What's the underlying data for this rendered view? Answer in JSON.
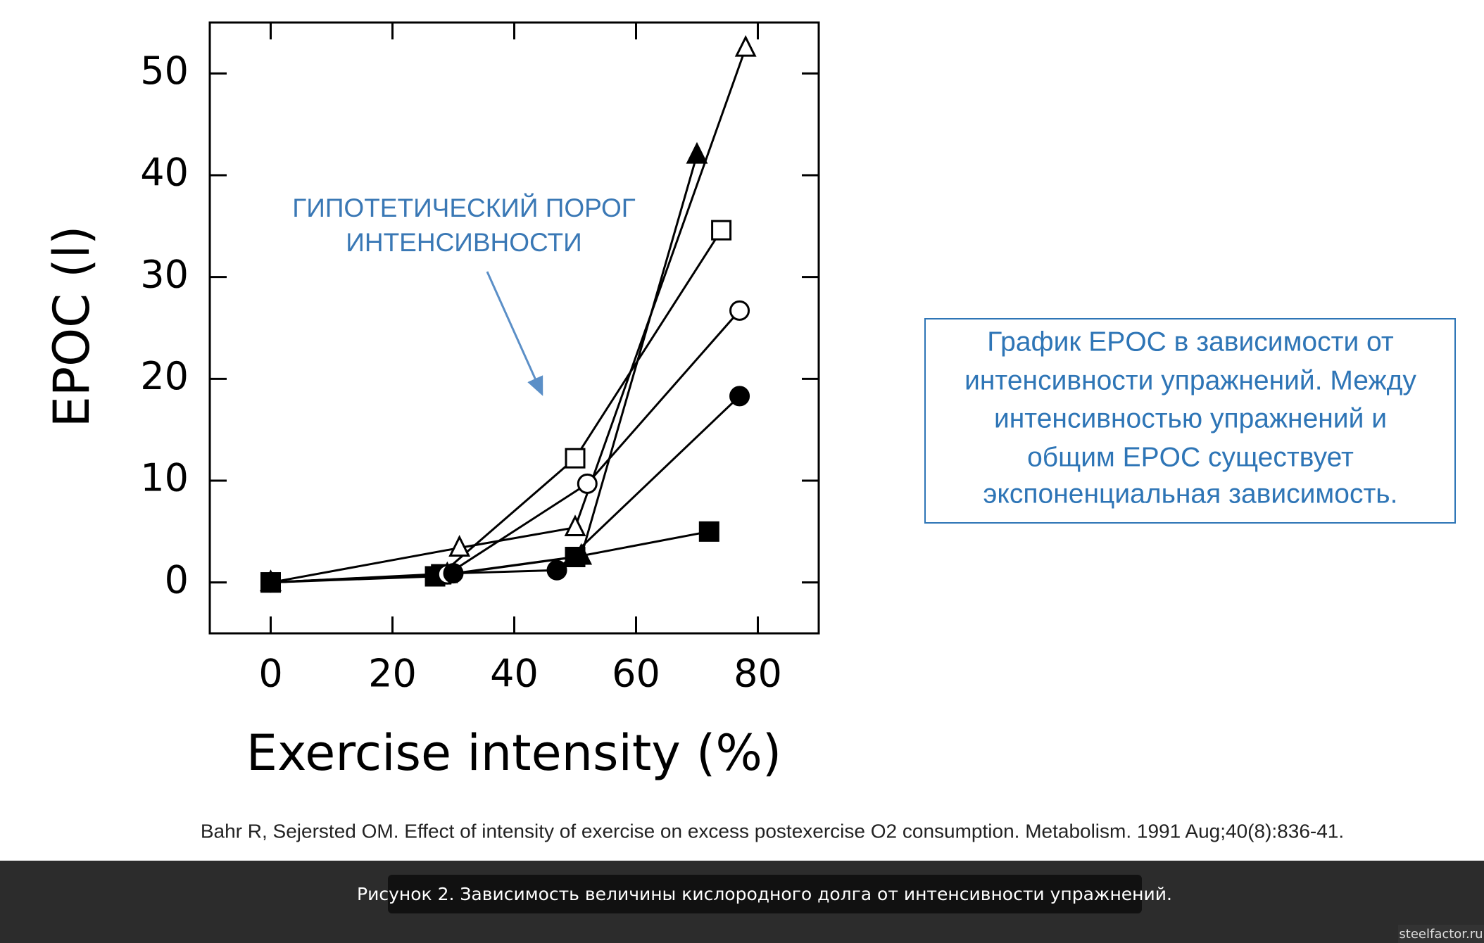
{
  "chart_data": {
    "type": "line",
    "xlabel": "Exercise intensity (%)",
    "ylabel": "EPOC (l)",
    "annotation": [
      "ГИПОТЕТИЧЕСКИЙ ПОРОГ",
      "ИНТЕНСИВНОСТИ"
    ],
    "xlim": [
      -10,
      90
    ],
    "xticks": [
      0,
      20,
      40,
      60,
      80
    ],
    "ylim": [
      -5,
      55
    ],
    "yticks": [
      0,
      10,
      20,
      30,
      40,
      50
    ],
    "color": "#000000",
    "series": [
      {
        "marker": "triangle",
        "filled": false,
        "x": [
          0,
          31,
          50,
          78
        ],
        "values": [
          0,
          3.4,
          5.4,
          52.5
        ]
      },
      {
        "marker": "triangle",
        "filled": true,
        "x": [
          0,
          29,
          51,
          70
        ],
        "values": [
          0,
          0.8,
          2.6,
          42
        ]
      },
      {
        "marker": "square",
        "filled": false,
        "x": [
          0,
          28,
          50,
          74
        ],
        "values": [
          0,
          0.8,
          12.2,
          34.6
        ]
      },
      {
        "marker": "square",
        "filled": true,
        "x": [
          0,
          27,
          50,
          72
        ],
        "values": [
          0,
          0.6,
          2.5,
          5
        ]
      },
      {
        "marker": "circle",
        "filled": false,
        "x": [
          0,
          29,
          52,
          77
        ],
        "values": [
          0,
          0.8,
          9.7,
          26.7
        ]
      },
      {
        "marker": "circle",
        "filled": true,
        "x": [
          0,
          30,
          47,
          77
        ],
        "values": [
          0,
          0.9,
          1.2,
          18.3
        ]
      }
    ]
  },
  "note": [
    "График EPOC в зависимости от",
    "интенсивности упражнений. Между",
    "интенсивностью упражнений и",
    "общим EPOC существует",
    "экспоненциальная зависимость."
  ],
  "source": "Bahr R, Sejersted OM. Effect of intensity of exercise on excess postexercise O2 consumption. Metabolism. 1991 Aug;40(8):836-41.",
  "caption": "Рисунок 2. Зависимость величины кислородного долга от интенсивности упражнений.",
  "watermark": "steelfactor.ru"
}
